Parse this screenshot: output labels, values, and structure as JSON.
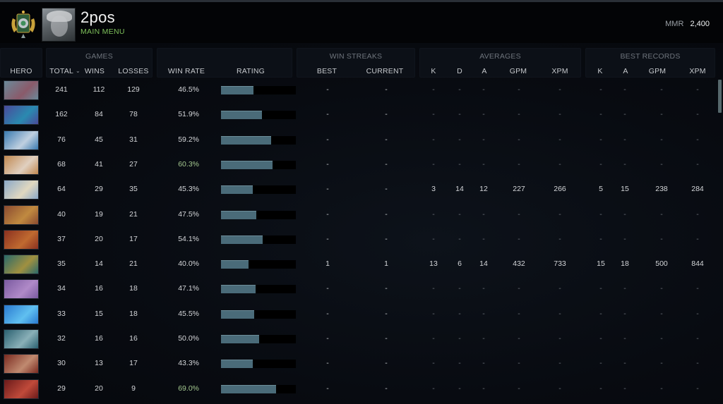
{
  "header": {
    "player_name": "2pos",
    "subtitle": "MAIN MENU",
    "mmr_label": "MMR",
    "mmr_value": "2,400",
    "rank_icon": "rank-medal-icon",
    "avatar": "player-avatar"
  },
  "columns": {
    "hero": "HERO",
    "games_group": "GAMES",
    "total": "TOTAL",
    "total_sort_icon": "⌄",
    "wins": "WINS",
    "losses": "LOSSES",
    "win_rate": "WIN RATE",
    "rating": "RATING",
    "win_streaks_group": "WIN STREAKS",
    "best": "BEST",
    "current": "CURRENT",
    "averages_group": "AVERAGES",
    "avg_k": "K",
    "avg_d": "D",
    "avg_a": "A",
    "avg_gpm": "GPM",
    "avg_xpm": "XPM",
    "best_records_group": "BEST RECORDS",
    "br_k": "K",
    "br_a": "A",
    "br_gpm": "GPM",
    "br_xpm": "XPM"
  },
  "colors": {
    "accent_green": "#7fc15b",
    "high_winrate": "#a3c78f",
    "rating_fill": "#4a6b79"
  },
  "rows": [
    {
      "hero": "sniper",
      "p1": "#6a8a9a",
      "p2": "#8a5a6a",
      "total": "241",
      "wins": "112",
      "losses": "129",
      "win_rate": "46.5%",
      "rating_pct": 43,
      "best": "-",
      "current": "-",
      "k": "-",
      "d": "-",
      "a": "-",
      "gpm": "-",
      "xpm": "-",
      "br_k": "-",
      "br_a": "-",
      "br_gpm": "-",
      "br_xpm": "-"
    },
    {
      "hero": "riki",
      "p1": "#4a4a9a",
      "p2": "#2a8ab0",
      "total": "162",
      "wins": "84",
      "losses": "78",
      "win_rate": "51.9%",
      "rating_pct": 55,
      "best": "-",
      "current": "-",
      "k": "-",
      "d": "-",
      "a": "-",
      "gpm": "-",
      "xpm": "-",
      "br_k": "-",
      "br_a": "-",
      "br_gpm": "-",
      "br_xpm": "-"
    },
    {
      "hero": "zeus",
      "p1": "#3a7ab0",
      "p2": "#c0d0e0",
      "total": "76",
      "wins": "45",
      "losses": "31",
      "win_rate": "59.2%",
      "rating_pct": 67,
      "best": "-",
      "current": "-",
      "k": "-",
      "d": "-",
      "a": "-",
      "gpm": "-",
      "xpm": "-",
      "br_k": "-",
      "br_a": "-",
      "br_gpm": "-",
      "br_xpm": "-"
    },
    {
      "hero": "omniknight",
      "p1": "#c08850",
      "p2": "#e0d0c0",
      "total": "68",
      "wins": "41",
      "losses": "27",
      "win_rate": "60.3%",
      "rating_pct": 69,
      "best": "-",
      "current": "-",
      "k": "-",
      "d": "-",
      "a": "-",
      "gpm": "-",
      "xpm": "-",
      "br_k": "-",
      "br_a": "-",
      "br_gpm": "-",
      "br_xpm": "-"
    },
    {
      "hero": "crystal-maiden",
      "p1": "#8aa8c8",
      "p2": "#e0d8c0",
      "total": "64",
      "wins": "29",
      "losses": "35",
      "win_rate": "45.3%",
      "rating_pct": 42,
      "best": "-",
      "current": "-",
      "k": "3",
      "d": "14",
      "a": "12",
      "gpm": "227",
      "xpm": "266",
      "br_k": "5",
      "br_a": "15",
      "br_gpm": "238",
      "br_xpm": "284"
    },
    {
      "hero": "shadow-fiend-red",
      "p1": "#8a4a30",
      "p2": "#c08a40",
      "total": "40",
      "wins": "19",
      "losses": "21",
      "win_rate": "47.5%",
      "rating_pct": 47,
      "best": "-",
      "current": "-",
      "k": "-",
      "d": "-",
      "a": "-",
      "gpm": "-",
      "xpm": "-",
      "br_k": "-",
      "br_a": "-",
      "br_gpm": "-",
      "br_xpm": "-"
    },
    {
      "hero": "bloodseeker",
      "p1": "#8a3020",
      "p2": "#c06a30",
      "total": "37",
      "wins": "20",
      "losses": "17",
      "win_rate": "54.1%",
      "rating_pct": 56,
      "best": "-",
      "current": "-",
      "k": "-",
      "d": "-",
      "a": "-",
      "gpm": "-",
      "xpm": "-",
      "br_k": "-",
      "br_a": "-",
      "br_gpm": "-",
      "br_xpm": "-"
    },
    {
      "hero": "dragon-knight",
      "p1": "#2a6a6a",
      "p2": "#a09040",
      "total": "35",
      "wins": "14",
      "losses": "21",
      "win_rate": "40.0%",
      "rating_pct": 37,
      "best": "1",
      "current": "1",
      "k": "13",
      "d": "6",
      "a": "14",
      "gpm": "432",
      "xpm": "733",
      "br_k": "15",
      "br_a": "18",
      "br_gpm": "500",
      "br_xpm": "844"
    },
    {
      "hero": "bane",
      "p1": "#7a5aa0",
      "p2": "#b08ac8",
      "total": "34",
      "wins": "16",
      "losses": "18",
      "win_rate": "47.1%",
      "rating_pct": 46,
      "best": "-",
      "current": "-",
      "k": "-",
      "d": "-",
      "a": "-",
      "gpm": "-",
      "xpm": "-",
      "br_k": "-",
      "br_a": "-",
      "br_gpm": "-",
      "br_xpm": "-"
    },
    {
      "hero": "storm-spirit",
      "p1": "#2a7ad0",
      "p2": "#60c0f0",
      "total": "33",
      "wins": "15",
      "losses": "18",
      "win_rate": "45.5%",
      "rating_pct": 44,
      "best": "-",
      "current": "-",
      "k": "-",
      "d": "-",
      "a": "-",
      "gpm": "-",
      "xpm": "-",
      "br_k": "-",
      "br_a": "-",
      "br_gpm": "-",
      "br_xpm": "-"
    },
    {
      "hero": "spirit-breaker",
      "p1": "#2a6070",
      "p2": "#8ab0b8",
      "total": "32",
      "wins": "16",
      "losses": "16",
      "win_rate": "50.0%",
      "rating_pct": 51,
      "best": "-",
      "current": "-",
      "k": "-",
      "d": "-",
      "a": "-",
      "gpm": "-",
      "xpm": "-",
      "br_k": "-",
      "br_a": "-",
      "br_gpm": "-",
      "br_xpm": "-"
    },
    {
      "hero": "bloodseeker-2",
      "p1": "#7a2a20",
      "p2": "#c08a70",
      "total": "30",
      "wins": "13",
      "losses": "17",
      "win_rate": "43.3%",
      "rating_pct": 42,
      "best": "-",
      "current": "-",
      "k": "-",
      "d": "-",
      "a": "-",
      "gpm": "-",
      "xpm": "-",
      "br_k": "-",
      "br_a": "-",
      "br_gpm": "-",
      "br_xpm": "-"
    },
    {
      "hero": "warlock-hooded",
      "p1": "#6a1a1a",
      "p2": "#c04a3a",
      "total": "29",
      "wins": "20",
      "losses": "9",
      "win_rate": "69.0%",
      "rating_pct": 74,
      "best": "-",
      "current": "-",
      "k": "-",
      "d": "-",
      "a": "-",
      "gpm": "-",
      "xpm": "-",
      "br_k": "-",
      "br_a": "-",
      "br_gpm": "-",
      "br_xpm": "-"
    }
  ]
}
